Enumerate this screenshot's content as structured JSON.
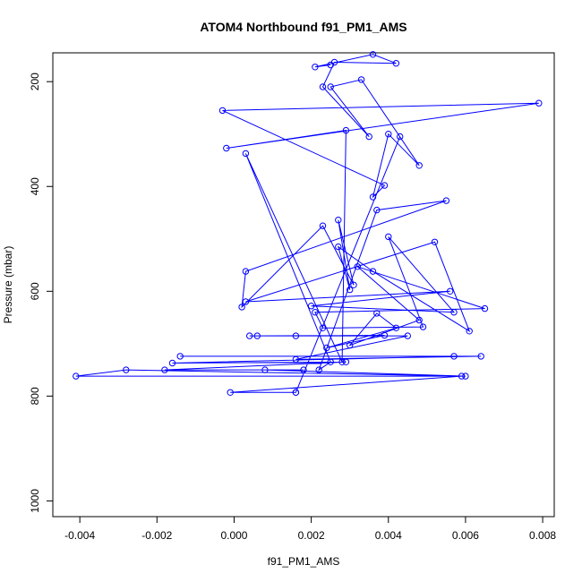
{
  "chart_data": {
    "type": "line",
    "title": "ATOM4 Northbound f91_PM1_AMS",
    "xlabel": "f91_PM1_AMS",
    "ylabel": "Pressure (mbar)",
    "xlim": [
      -0.0047,
      0.0083
    ],
    "ylim": [
      1030,
      145
    ],
    "y_reversed": true,
    "x_ticks": [
      -0.004,
      -0.002,
      0.0,
      0.002,
      0.004,
      0.006,
      0.008
    ],
    "x_tick_labels": [
      "-0.004",
      "-0.002",
      "0.000",
      "0.002",
      "0.004",
      "0.006",
      "0.008"
    ],
    "y_ticks": [
      200,
      400,
      600,
      800,
      1000
    ],
    "y_tick_labels": [
      "200",
      "400",
      "600",
      "800",
      "1000"
    ],
    "grid": false,
    "series": [
      {
        "color": "#0000ff",
        "points": [
          [
            0.0025,
            168
          ],
          [
            0.0021,
            172
          ],
          [
            0.0036,
            148
          ],
          [
            0.0042,
            165
          ],
          [
            0.0026,
            163
          ],
          [
            0.0023,
            210
          ],
          [
            0.0035,
            305
          ],
          [
            0.0025,
            210
          ],
          [
            0.0033,
            196
          ],
          [
            0.0048,
            360
          ],
          [
            0.004,
            300
          ],
          [
            0.0036,
            420
          ],
          [
            0.0039,
            398
          ],
          [
            -0.0003,
            255
          ],
          [
            0.0079,
            241
          ],
          [
            -0.0002,
            327
          ],
          [
            0.0029,
            293
          ],
          [
            0.0028,
            735
          ],
          [
            0.0003,
            337
          ],
          [
            0.0025,
            735
          ],
          [
            0.0022,
            750
          ],
          [
            0.0037,
            445
          ],
          [
            0.0055,
            427
          ],
          [
            0.0003,
            562
          ],
          [
            0.0002,
            630
          ],
          [
            0.0023,
            475
          ],
          [
            0.0031,
            588
          ],
          [
            0.0027,
            464
          ],
          [
            0.003,
            597
          ],
          [
            0.0027,
            515
          ],
          [
            0.0036,
            562
          ],
          [
            0.0061,
            676
          ],
          [
            0.0052,
            506
          ],
          [
            0.0003,
            620
          ],
          [
            0.0056,
            600
          ],
          [
            0.002,
            628
          ],
          [
            0.0057,
            640
          ],
          [
            0.004,
            496
          ],
          [
            0.0049,
            668
          ],
          [
            0.0023,
            670
          ],
          [
            0.0021,
            640
          ],
          [
            0.0065,
            633
          ],
          [
            0.0032,
            553
          ],
          [
            0.0048,
            655
          ],
          [
            0.003,
            703
          ],
          [
            0.0037,
            642
          ],
          [
            0.0042,
            670
          ],
          [
            0.0024,
            708
          ],
          [
            0.0039,
            684
          ],
          [
            0.0004,
            685
          ],
          [
            0.0016,
            685
          ],
          [
            0.0006,
            685
          ],
          [
            0.0045,
            685
          ],
          [
            0.0016,
            730
          ],
          [
            0.0064,
            724
          ],
          [
            -0.0014,
            724
          ],
          [
            0.0057,
            724
          ],
          [
            -0.0016,
            737
          ],
          [
            0.0029,
            735
          ],
          [
            -0.0018,
            750
          ],
          [
            0.0018,
            750
          ],
          [
            0.0008,
            750
          ],
          [
            0.006,
            762
          ],
          [
            -0.0028,
            750
          ],
          [
            -0.0041,
            762
          ],
          [
            0.0059,
            762
          ],
          [
            -0.0001,
            793
          ],
          [
            0.0016,
            793
          ],
          [
            0.0043,
            305
          ],
          [
            0.0016,
            793
          ]
        ]
      }
    ]
  }
}
